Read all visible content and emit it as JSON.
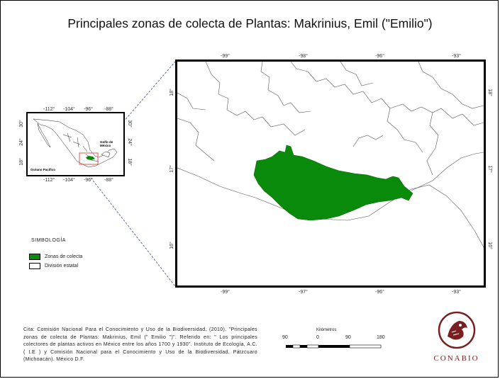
{
  "title": "Principales zonas de colecta de Plantas: Makrinius, Emil (\"Emilio\")",
  "inset_map": {
    "top_ticks": [
      "-112°",
      "-104°",
      "-96°",
      "-88°"
    ],
    "bottom_ticks": [
      "-112°",
      "-104°",
      "-96°",
      "-88°"
    ],
    "left_ticks": [
      "30°",
      "24°",
      "18°"
    ],
    "right_ticks": [
      "30°",
      "24°",
      "18°"
    ],
    "labels": {
      "gulf": "Golfo de México",
      "pacific": "Océano Pacífico"
    }
  },
  "main_map": {
    "top_ticks": [
      "-99°",
      "-98°",
      "-96°",
      "-93°"
    ],
    "bottom_ticks": [
      "-99°",
      "-97°",
      "-96°",
      "-93°"
    ],
    "left_ticks": [
      "18°",
      "17°",
      "16°"
    ],
    "right_ticks": [
      "18°",
      "17°",
      "16°"
    ]
  },
  "legend": {
    "title": "SIMBOLOGÍA",
    "items": [
      {
        "label": "Zonas de colecta",
        "color": "#0a8a0a"
      },
      {
        "label": "División estatal",
        "color": "#ffffff"
      }
    ]
  },
  "citation": "Cita: Comisión Nacional Para el Conocimiento y Uso de la Biodiversidad. (2010). \"Principales zonas de colecta de Plantas: Makrinius, Emil (\" Emilio \")\". Referido en: \" Los principales colectores de plantas activos en México entre los años 1700 y 1930\". Instituto de Ecología, A.C. ( I.E ) y Comisión Nacional para el Conocimiento y Uso de la Biodiversidad. Pátzcuaro (Michoacán). México D.F.",
  "scale": {
    "unit": "Kilómetros",
    "labels": [
      "90",
      "0",
      "90",
      "180"
    ]
  },
  "logo": {
    "name": "CONABIO"
  },
  "colors": {
    "collection_zone": "#0a8a0a",
    "inset_highlight": "#e05555",
    "logo": "#7a1f1f"
  }
}
